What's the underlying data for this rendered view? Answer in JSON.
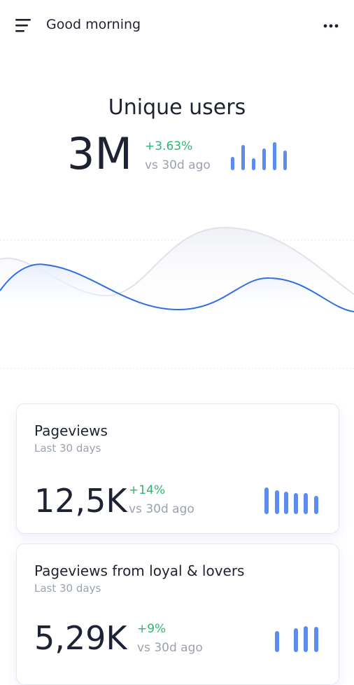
{
  "header": {
    "title": "Good morning"
  },
  "summary": {
    "title": "Unique users",
    "value": "3M",
    "change": "+3.63%",
    "comparison": "vs 30d ago"
  },
  "cards": [
    {
      "title": "Pageviews",
      "period": "Last 30 days",
      "value": "12,5K",
      "change": "+14%",
      "comparison": "vs 30d ago"
    },
    {
      "title": "Pageviews from loyal & lovers",
      "period": "Last 30 days",
      "value": "5,29K",
      "change": "+9%",
      "comparison": "vs 30d ago"
    }
  ]
}
